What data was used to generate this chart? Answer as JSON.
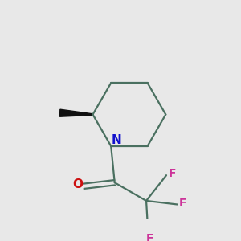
{
  "bg_color": "#e8e8e8",
  "bond_color": "#4a7060",
  "bond_width": 1.6,
  "wedge_color": "#111111",
  "N_color": "#1010cc",
  "O_color": "#cc1010",
  "F_color": "#cc3399",
  "N_label": "N",
  "O_label": "O",
  "F_label": "F",
  "figsize": [
    3.0,
    3.0
  ],
  "dpi": 100,
  "label_fontsize": 10
}
